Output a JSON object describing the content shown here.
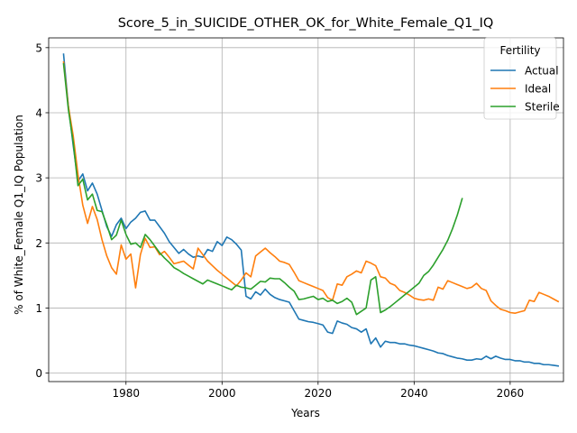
{
  "chart_data": {
    "type": "line",
    "title": "Score_5_in_SUICIDE_OTHER_OK_for_White_Female_Q1_IQ",
    "xlabel": "Years",
    "ylabel": "% of White_Female Q1_IQ Population",
    "xlim": [
      1963.9,
      2071.1
    ],
    "ylim": [
      -0.13,
      5.15
    ],
    "x_ticks": [
      1980,
      2000,
      2020,
      2040,
      2060
    ],
    "y_ticks": [
      0,
      1,
      2,
      3,
      4,
      5
    ],
    "grid": true,
    "legend": {
      "title": "Fertility",
      "placement": "top-right"
    },
    "series": [
      {
        "name": "Actual",
        "color": "#1f77b4",
        "points": [
          [
            1967,
            4.9
          ],
          [
            1968,
            4.1
          ],
          [
            1969,
            3.5
          ],
          [
            1970,
            2.95
          ],
          [
            1971,
            3.06
          ],
          [
            1972,
            2.8
          ],
          [
            1973,
            2.92
          ],
          [
            1974,
            2.75
          ],
          [
            1975,
            2.5
          ],
          [
            1976,
            2.25
          ],
          [
            1977,
            2.1
          ],
          [
            1978,
            2.28
          ],
          [
            1979,
            2.38
          ],
          [
            1980,
            2.22
          ],
          [
            1981,
            2.32
          ],
          [
            1982,
            2.38
          ],
          [
            1983,
            2.47
          ],
          [
            1984,
            2.49
          ],
          [
            1985,
            2.35
          ],
          [
            1986,
            2.35
          ],
          [
            1987,
            2.25
          ],
          [
            1988,
            2.15
          ],
          [
            1989,
            2.02
          ],
          [
            1990,
            1.93
          ],
          [
            1991,
            1.84
          ],
          [
            1992,
            1.9
          ],
          [
            1993,
            1.83
          ],
          [
            1994,
            1.78
          ],
          [
            1995,
            1.8
          ],
          [
            1996,
            1.78
          ],
          [
            1997,
            1.9
          ],
          [
            1998,
            1.87
          ],
          [
            1999,
            2.02
          ],
          [
            2000,
            1.96
          ],
          [
            2001,
            2.09
          ],
          [
            2002,
            2.05
          ],
          [
            2003,
            1.98
          ],
          [
            2004,
            1.89
          ],
          [
            2005,
            1.18
          ],
          [
            2006,
            1.14
          ],
          [
            2007,
            1.25
          ],
          [
            2008,
            1.2
          ],
          [
            2009,
            1.29
          ],
          [
            2010,
            1.21
          ],
          [
            2011,
            1.16
          ],
          [
            2012,
            1.13
          ],
          [
            2013,
            1.11
          ],
          [
            2014,
            1.09
          ],
          [
            2015,
            0.96
          ],
          [
            2016,
            0.83
          ],
          [
            2017,
            0.81
          ],
          [
            2018,
            0.79
          ],
          [
            2019,
            0.78
          ],
          [
            2020,
            0.76
          ],
          [
            2021,
            0.74
          ],
          [
            2022,
            0.63
          ],
          [
            2023,
            0.61
          ],
          [
            2024,
            0.8
          ],
          [
            2025,
            0.77
          ],
          [
            2026,
            0.75
          ],
          [
            2027,
            0.7
          ],
          [
            2028,
            0.68
          ],
          [
            2029,
            0.63
          ],
          [
            2030,
            0.68
          ],
          [
            2031,
            0.45
          ],
          [
            2032,
            0.54
          ],
          [
            2033,
            0.4
          ],
          [
            2034,
            0.49
          ],
          [
            2035,
            0.47
          ],
          [
            2036,
            0.47
          ],
          [
            2037,
            0.45
          ],
          [
            2038,
            0.45
          ],
          [
            2039,
            0.43
          ],
          [
            2040,
            0.42
          ],
          [
            2041,
            0.4
          ],
          [
            2042,
            0.38
          ],
          [
            2043,
            0.36
          ],
          [
            2044,
            0.34
          ],
          [
            2045,
            0.31
          ],
          [
            2046,
            0.3
          ],
          [
            2047,
            0.27
          ],
          [
            2048,
            0.25
          ],
          [
            2049,
            0.23
          ],
          [
            2050,
            0.22
          ],
          [
            2051,
            0.2
          ],
          [
            2052,
            0.2
          ],
          [
            2053,
            0.22
          ],
          [
            2054,
            0.21
          ],
          [
            2055,
            0.26
          ],
          [
            2056,
            0.22
          ],
          [
            2057,
            0.26
          ],
          [
            2058,
            0.23
          ],
          [
            2059,
            0.21
          ],
          [
            2060,
            0.21
          ],
          [
            2061,
            0.19
          ],
          [
            2062,
            0.19
          ],
          [
            2063,
            0.17
          ],
          [
            2064,
            0.17
          ],
          [
            2065,
            0.15
          ],
          [
            2066,
            0.15
          ],
          [
            2067,
            0.13
          ],
          [
            2068,
            0.13
          ],
          [
            2069,
            0.12
          ],
          [
            2070,
            0.11
          ]
        ]
      },
      {
        "name": "Ideal",
        "color": "#ff7f0e",
        "points": [
          [
            1967,
            4.78
          ],
          [
            1968,
            4.1
          ],
          [
            1969,
            3.65
          ],
          [
            1970,
            3.05
          ],
          [
            1971,
            2.58
          ],
          [
            1972,
            2.3
          ],
          [
            1973,
            2.56
          ],
          [
            1974,
            2.36
          ],
          [
            1975,
            2.05
          ],
          [
            1976,
            1.8
          ],
          [
            1977,
            1.62
          ],
          [
            1978,
            1.52
          ],
          [
            1979,
            1.97
          ],
          [
            1980,
            1.75
          ],
          [
            1981,
            1.83
          ],
          [
            1982,
            1.31
          ],
          [
            1983,
            1.82
          ],
          [
            1984,
            2.07
          ],
          [
            1985,
            1.93
          ],
          [
            1986,
            1.94
          ],
          [
            1987,
            1.82
          ],
          [
            1988,
            1.87
          ],
          [
            1989,
            1.78
          ],
          [
            1990,
            1.68
          ],
          [
            1991,
            1.7
          ],
          [
            1992,
            1.72
          ],
          [
            1993,
            1.66
          ],
          [
            1994,
            1.6
          ],
          [
            1995,
            1.92
          ],
          [
            1996,
            1.82
          ],
          [
            1997,
            1.72
          ],
          [
            1998,
            1.65
          ],
          [
            1999,
            1.58
          ],
          [
            2000,
            1.52
          ],
          [
            2001,
            1.46
          ],
          [
            2002,
            1.4
          ],
          [
            2003,
            1.34
          ],
          [
            2004,
            1.43
          ],
          [
            2005,
            1.54
          ],
          [
            2006,
            1.48
          ],
          [
            2007,
            1.8
          ],
          [
            2008,
            1.86
          ],
          [
            2009,
            1.92
          ],
          [
            2010,
            1.85
          ],
          [
            2011,
            1.79
          ],
          [
            2012,
            1.72
          ],
          [
            2013,
            1.7
          ],
          [
            2014,
            1.67
          ],
          [
            2015,
            1.55
          ],
          [
            2016,
            1.42
          ],
          [
            2017,
            1.39
          ],
          [
            2018,
            1.36
          ],
          [
            2019,
            1.33
          ],
          [
            2020,
            1.3
          ],
          [
            2021,
            1.27
          ],
          [
            2022,
            1.16
          ],
          [
            2023,
            1.12
          ],
          [
            2024,
            1.37
          ],
          [
            2025,
            1.35
          ],
          [
            2026,
            1.48
          ],
          [
            2027,
            1.52
          ],
          [
            2028,
            1.57
          ],
          [
            2029,
            1.54
          ],
          [
            2030,
            1.72
          ],
          [
            2031,
            1.69
          ],
          [
            2032,
            1.65
          ],
          [
            2033,
            1.48
          ],
          [
            2034,
            1.46
          ],
          [
            2035,
            1.38
          ],
          [
            2036,
            1.35
          ],
          [
            2037,
            1.27
          ],
          [
            2038,
            1.24
          ],
          [
            2039,
            1.2
          ],
          [
            2040,
            1.15
          ],
          [
            2041,
            1.13
          ],
          [
            2042,
            1.12
          ],
          [
            2043,
            1.14
          ],
          [
            2044,
            1.12
          ],
          [
            2045,
            1.32
          ],
          [
            2046,
            1.29
          ],
          [
            2047,
            1.42
          ],
          [
            2048,
            1.39
          ],
          [
            2049,
            1.36
          ],
          [
            2050,
            1.33
          ],
          [
            2051,
            1.3
          ],
          [
            2052,
            1.32
          ],
          [
            2053,
            1.38
          ],
          [
            2054,
            1.3
          ],
          [
            2055,
            1.27
          ],
          [
            2056,
            1.11
          ],
          [
            2057,
            1.04
          ],
          [
            2058,
            0.98
          ],
          [
            2059,
            0.96
          ],
          [
            2060,
            0.93
          ],
          [
            2061,
            0.92
          ],
          [
            2062,
            0.94
          ],
          [
            2063,
            0.96
          ],
          [
            2064,
            1.12
          ],
          [
            2065,
            1.1
          ],
          [
            2066,
            1.24
          ],
          [
            2067,
            1.21
          ],
          [
            2068,
            1.18
          ],
          [
            2069,
            1.14
          ],
          [
            2070,
            1.1
          ]
        ]
      },
      {
        "name": "Sterile",
        "color": "#2ca02c",
        "points": [
          [
            1967,
            4.75
          ],
          [
            1968,
            4.05
          ],
          [
            1969,
            3.55
          ],
          [
            1970,
            2.88
          ],
          [
            1971,
            2.98
          ],
          [
            1972,
            2.66
          ],
          [
            1973,
            2.75
          ],
          [
            1974,
            2.5
          ],
          [
            1975,
            2.48
          ],
          [
            1976,
            2.28
          ],
          [
            1977,
            2.05
          ],
          [
            1978,
            2.12
          ],
          [
            1979,
            2.35
          ],
          [
            1980,
            2.13
          ],
          [
            1981,
            1.98
          ],
          [
            1982,
            2.0
          ],
          [
            1983,
            1.93
          ],
          [
            1984,
            2.13
          ],
          [
            1985,
            2.05
          ],
          [
            1986,
            1.95
          ],
          [
            1987,
            1.85
          ],
          [
            1988,
            1.77
          ],
          [
            1989,
            1.7
          ],
          [
            1990,
            1.62
          ],
          [
            1991,
            1.58
          ],
          [
            1992,
            1.53
          ],
          [
            1993,
            1.49
          ],
          [
            1994,
            1.45
          ],
          [
            1995,
            1.41
          ],
          [
            1996,
            1.37
          ],
          [
            1997,
            1.43
          ],
          [
            1998,
            1.4
          ],
          [
            1999,
            1.37
          ],
          [
            2000,
            1.34
          ],
          [
            2001,
            1.31
          ],
          [
            2002,
            1.28
          ],
          [
            2003,
            1.35
          ],
          [
            2004,
            1.32
          ],
          [
            2005,
            1.31
          ],
          [
            2006,
            1.29
          ],
          [
            2007,
            1.35
          ],
          [
            2008,
            1.41
          ],
          [
            2009,
            1.4
          ],
          [
            2010,
            1.46
          ],
          [
            2011,
            1.45
          ],
          [
            2012,
            1.45
          ],
          [
            2013,
            1.39
          ],
          [
            2014,
            1.32
          ],
          [
            2015,
            1.26
          ],
          [
            2016,
            1.13
          ],
          [
            2017,
            1.14
          ],
          [
            2018,
            1.16
          ],
          [
            2019,
            1.18
          ],
          [
            2020,
            1.13
          ],
          [
            2021,
            1.15
          ],
          [
            2022,
            1.1
          ],
          [
            2023,
            1.12
          ],
          [
            2024,
            1.07
          ],
          [
            2025,
            1.1
          ],
          [
            2026,
            1.15
          ],
          [
            2027,
            1.09
          ],
          [
            2028,
            0.9
          ],
          [
            2029,
            0.95
          ],
          [
            2030,
            1.0
          ],
          [
            2031,
            1.43
          ],
          [
            2032,
            1.48
          ],
          [
            2033,
            0.93
          ],
          [
            2034,
            0.97
          ],
          [
            2035,
            1.02
          ],
          [
            2036,
            1.08
          ],
          [
            2037,
            1.14
          ],
          [
            2038,
            1.2
          ],
          [
            2039,
            1.26
          ],
          [
            2040,
            1.32
          ],
          [
            2041,
            1.38
          ],
          [
            2042,
            1.5
          ],
          [
            2043,
            1.56
          ],
          [
            2044,
            1.66
          ],
          [
            2045,
            1.78
          ],
          [
            2046,
            1.9
          ],
          [
            2047,
            2.04
          ],
          [
            2048,
            2.22
          ],
          [
            2049,
            2.43
          ],
          [
            2050,
            2.68
          ]
        ]
      }
    ]
  }
}
